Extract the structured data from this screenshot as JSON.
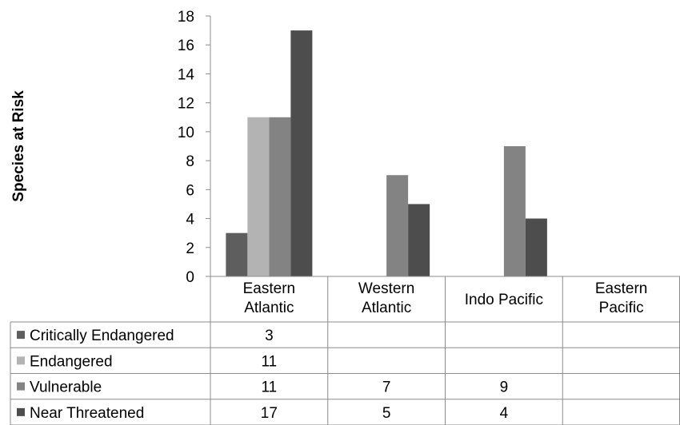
{
  "chart_data": {
    "type": "bar",
    "title": "",
    "ylabel": "Species at Risk",
    "xlabel": "",
    "ylim": [
      0,
      18
    ],
    "ytick_step": 2,
    "grid": false,
    "legend": "data-table",
    "categories": [
      {
        "lines": [
          "Eastern",
          "Atlantic"
        ]
      },
      {
        "lines": [
          "Western",
          "Atlantic"
        ]
      },
      {
        "lines": [
          "Indo Pacific"
        ]
      },
      {
        "lines": [
          "Eastern",
          "Pacific"
        ]
      }
    ],
    "series": [
      {
        "name": "Critically Endangered",
        "color": "#5e5e5e",
        "values": [
          3,
          null,
          null,
          null
        ]
      },
      {
        "name": "Endangered",
        "color": "#b3b3b3",
        "values": [
          11,
          null,
          null,
          null
        ]
      },
      {
        "name": "Vulnerable",
        "color": "#838383",
        "values": [
          11,
          7,
          9,
          null
        ]
      },
      {
        "name": "Near Threatened",
        "color": "#4d4d4d",
        "values": [
          17,
          5,
          4,
          null
        ]
      }
    ]
  }
}
